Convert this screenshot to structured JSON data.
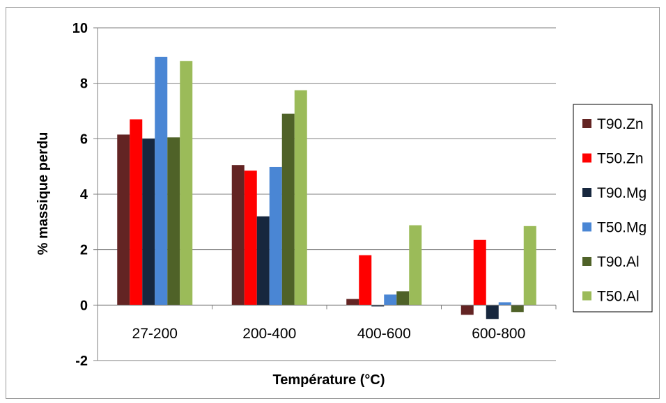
{
  "chart_data": {
    "type": "bar",
    "title": "",
    "xlabel": "Température (°C)",
    "ylabel": "% massique perdu",
    "categories": [
      "27-200",
      "200-400",
      "400-600",
      "600-800"
    ],
    "ylim": [
      -2,
      10
    ],
    "yticks": [
      "-2",
      "0",
      "2",
      "4",
      "6",
      "8",
      "10"
    ],
    "grid": true,
    "legend_position": "right",
    "series": [
      {
        "name": "T90.Zn",
        "color": "#632423",
        "values": [
          6.15,
          5.05,
          0.22,
          -0.35
        ]
      },
      {
        "name": "T50.Zn",
        "color": "#ff0000",
        "values": [
          6.7,
          4.85,
          1.8,
          2.35
        ]
      },
      {
        "name": "T90.Mg",
        "color": "#17273e",
        "values": [
          6.0,
          3.2,
          -0.05,
          -0.5
        ]
      },
      {
        "name": "T50.Mg",
        "color": "#4a86d4",
        "values": [
          8.95,
          4.98,
          0.38,
          0.1
        ]
      },
      {
        "name": "T90.Al",
        "color": "#4f6228",
        "values": [
          6.05,
          6.9,
          0.5,
          -0.25
        ]
      },
      {
        "name": "T50.Al",
        "color": "#9bbb59",
        "values": [
          8.8,
          7.75,
          2.88,
          2.85
        ]
      }
    ]
  }
}
